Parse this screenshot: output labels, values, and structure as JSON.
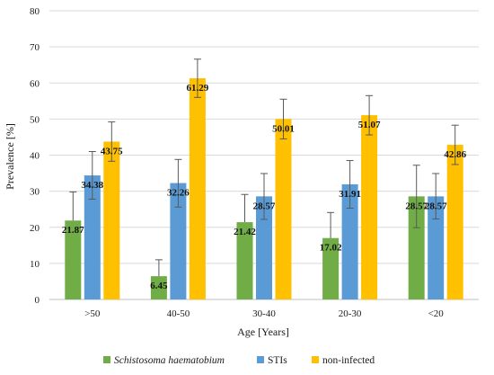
{
  "chart_data": {
    "type": "bar",
    "title": "",
    "xlabel": "Age [Years]",
    "ylabel": "Prevalence [%]",
    "ylim": [
      0,
      80
    ],
    "yticks": [
      0,
      10,
      20,
      30,
      40,
      50,
      60,
      70,
      80
    ],
    "grid": "horizontal",
    "legend_position": "bottom",
    "categories": [
      ">50",
      "40-50",
      "30-40",
      "20-30",
      "<20"
    ],
    "series": [
      {
        "name": "Schistosoma haematobium",
        "italic": true,
        "color": "#70ad47",
        "values": [
          21.87,
          6.45,
          21.42,
          17.02,
          28.57
        ],
        "error_upper": [
          29.8,
          11.0,
          29.1,
          24.1,
          37.2
        ],
        "error_lower": [
          null,
          null,
          null,
          null,
          19.9
        ],
        "labels": [
          "21.87",
          "6.45",
          "21.42",
          "17.02",
          "28.57"
        ]
      },
      {
        "name": "STIs",
        "italic": false,
        "color": "#5b9bd5",
        "values": [
          34.38,
          32.26,
          28.57,
          31.91,
          28.57
        ],
        "error_upper": [
          41.0,
          38.8,
          34.9,
          38.5,
          34.9
        ],
        "error_lower": [
          27.8,
          25.6,
          22.2,
          25.3,
          22.3
        ],
        "labels": [
          "34.38",
          "32.26",
          "28.57",
          "31.91",
          "28.57"
        ]
      },
      {
        "name": "non-infected",
        "italic": false,
        "color": "#ffc000",
        "values": [
          43.75,
          61.29,
          50.01,
          51.07,
          42.86
        ],
        "error_upper": [
          49.2,
          66.6,
          55.5,
          56.5,
          48.3
        ],
        "error_lower": [
          38.3,
          56.0,
          44.5,
          45.6,
          37.4
        ],
        "labels": [
          "43.75",
          "61.29",
          "50.01",
          "51.07",
          "42.86"
        ]
      }
    ]
  }
}
